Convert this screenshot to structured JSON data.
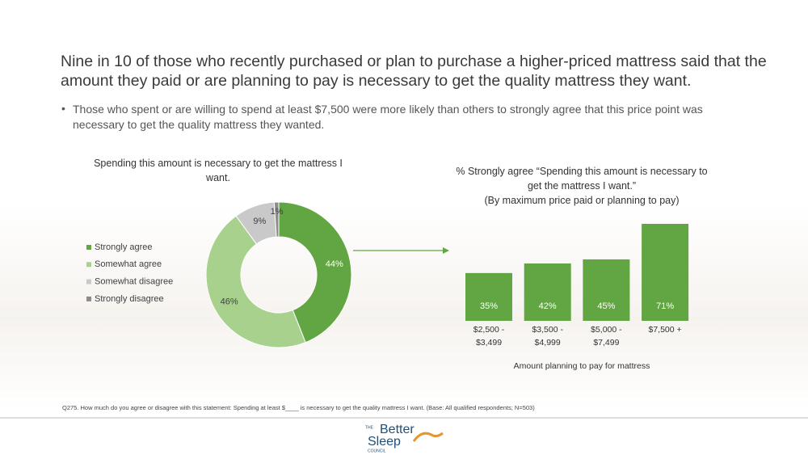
{
  "title": "Nine in 10 of those who recently purchased or plan to purchase a higher-priced mattress said that the amount they paid or are planning to pay is necessary to get the quality mattress they want.",
  "bullet": "Those who spent or are willing to spend at least $7,500 were more likely than others to strongly agree that this price point was necessary to get the quality mattress they wanted.",
  "footnote": "Q275. How much do you agree or disagree with this statement: Spending at least $____ is necessary to get the quality mattress I want. (Base: All qualified respondents; N=503)",
  "logo": {
    "the": "THE",
    "better": "Better",
    "sleep": "Sleep",
    "council": "COUNCIL"
  },
  "chart_data": [
    {
      "type": "donut",
      "title": "Spending this amount is necessary to get the mattress I want.",
      "categories": [
        "Strongly agree",
        "Somewhat agree",
        "Somewhat disagree",
        "Strongly disagree"
      ],
      "values": [
        44,
        46,
        9,
        1
      ],
      "value_labels": [
        "44%",
        "46%",
        "9%",
        "1%"
      ],
      "colors": [
        "#62a543",
        "#a9d18e",
        "#c9c9c9",
        "#8c8c8c"
      ],
      "legend": "left"
    },
    {
      "type": "bar",
      "title": "% Strongly agree “Spending this amount is necessary to get the mattress I want.”",
      "subtitle": "(By maximum price paid or planning to pay)",
      "x_label": "Amount planning to pay for mattress",
      "categories": [
        "$2,500 - $3,499",
        "$3,500 - $4,999",
        "$5,000 - $7,499",
        "$7,500 +"
      ],
      "values": [
        35,
        42,
        45,
        71
      ],
      "value_labels": [
        "35%",
        "42%",
        "45%",
        "71%"
      ],
      "color": "#62a543"
    }
  ]
}
